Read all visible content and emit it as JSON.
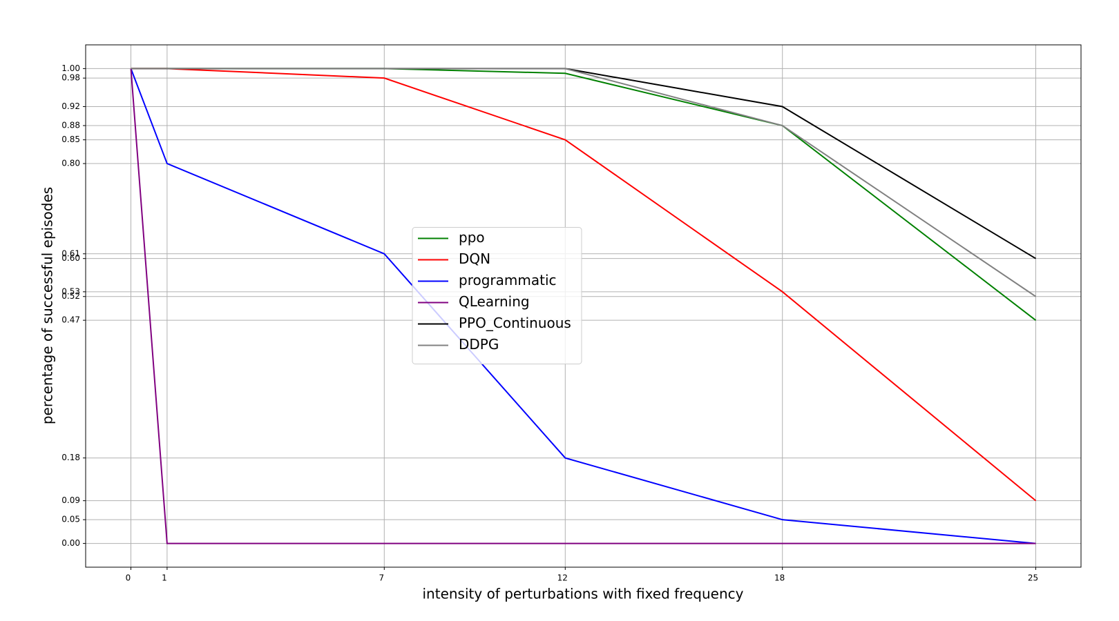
{
  "chart_data": {
    "type": "line",
    "xlabel": "intensity of perturbations with fixed frequency",
    "ylabel": "percentage of successful episodes",
    "x": [
      0,
      1,
      7,
      12,
      18,
      25
    ],
    "series": [
      {
        "name": "ppo",
        "color": "#008000",
        "values": [
          1,
          1,
          1,
          0.99,
          0.88,
          0.47
        ]
      },
      {
        "name": "DQN",
        "color": "#ff0000",
        "values": [
          1,
          1,
          0.98,
          0.85,
          0.53,
          0.09
        ]
      },
      {
        "name": "programmatic",
        "color": "#0000ff",
        "values": [
          1,
          0.8,
          0.61,
          0.18,
          0.05,
          0
        ]
      },
      {
        "name": "QLearning",
        "color": "#800080",
        "values": [
          1,
          0,
          0,
          0,
          0,
          0
        ]
      },
      {
        "name": "PPO_Continuous",
        "color": "#000000",
        "values": [
          1,
          1,
          1,
          1,
          0.92,
          0.6
        ]
      },
      {
        "name": "DDPG",
        "color": "#808080",
        "values": [
          1,
          1,
          1,
          1,
          0.88,
          0.52
        ]
      }
    ],
    "xlim": [
      -1.25,
      26.25
    ],
    "xticks": [
      0,
      1,
      7,
      12,
      18,
      25
    ],
    "ylim": [
      -0.05,
      1.05
    ],
    "yticks": [
      {
        "value": 1,
        "label": "1.00"
      },
      0.98,
      0.92,
      0.88,
      0.85,
      {
        "value": 0.8,
        "label": "0.80"
      },
      0.61,
      {
        "value": 0.6,
        "label": "0.60"
      },
      0.53,
      0.52,
      0.47,
      0.18,
      0.09,
      0.05,
      {
        "value": 0,
        "label": "0.00"
      }
    ],
    "grid": true,
    "legend": "center"
  }
}
